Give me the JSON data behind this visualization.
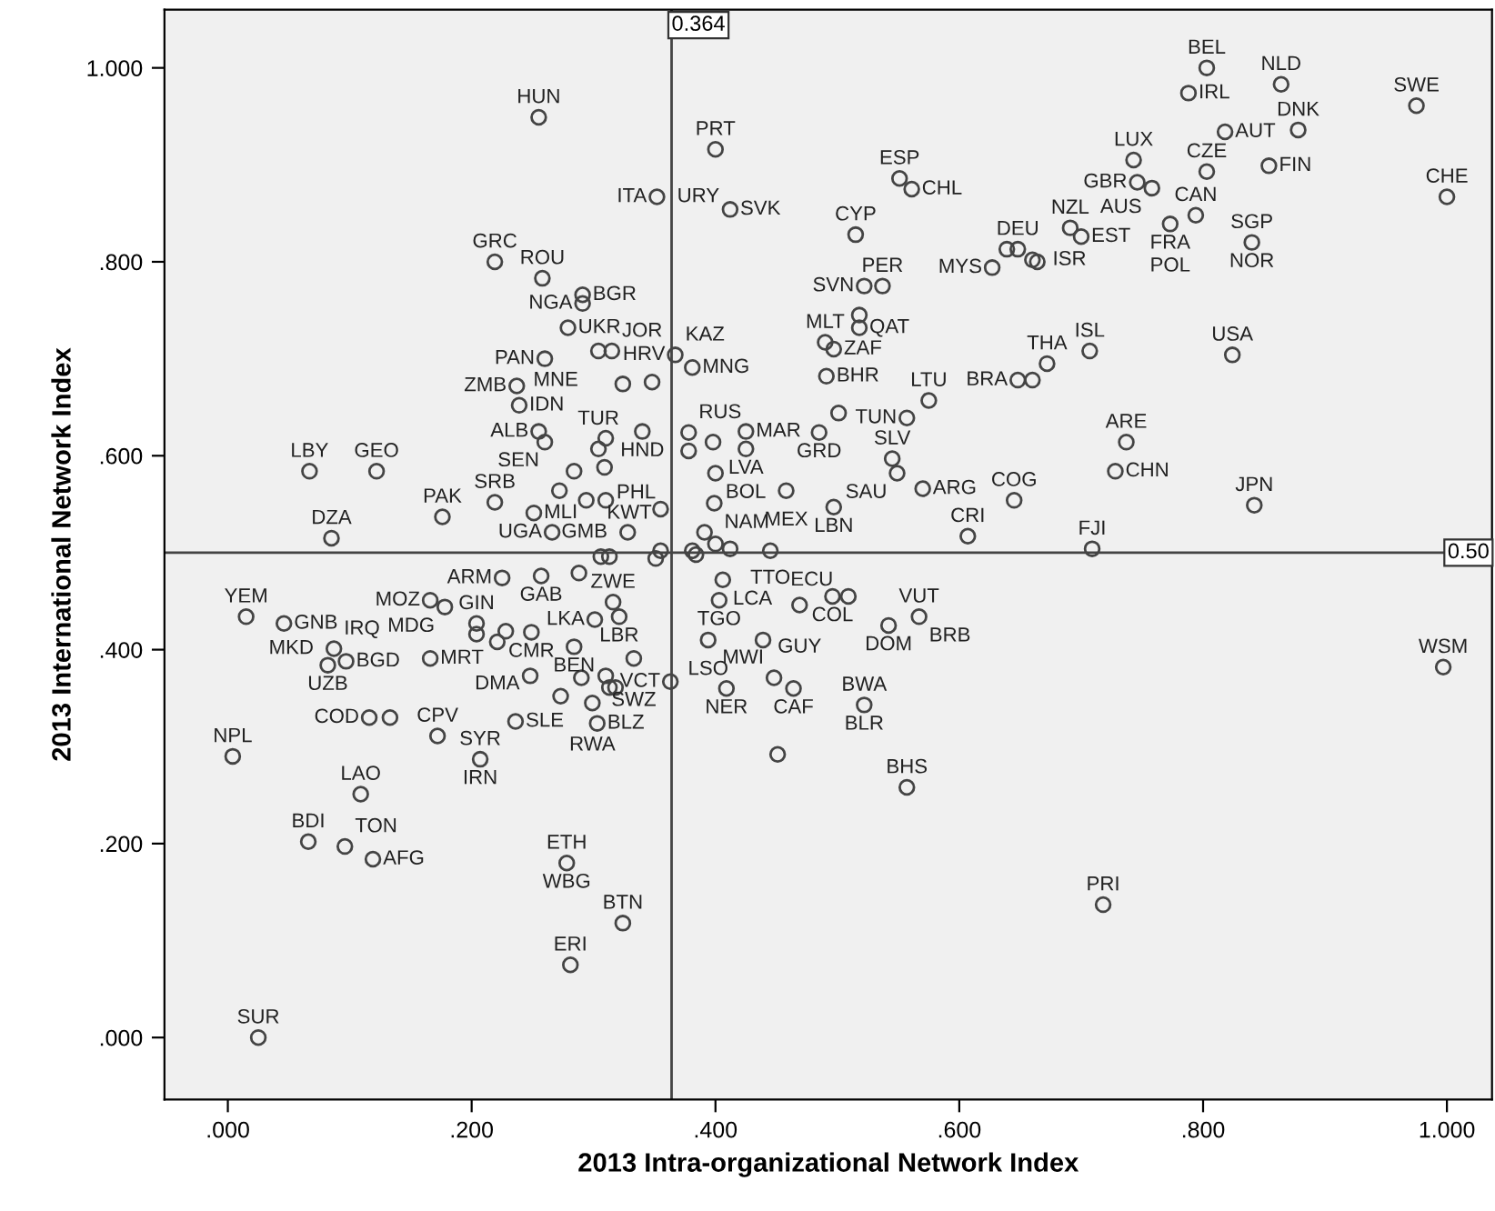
{
  "chart_data": {
    "type": "scatter",
    "xlabel": "2013 Intra-organizational Network Index",
    "ylabel": "2013 International Network Index",
    "xlim": [
      -0.052,
      1.037
    ],
    "ylim": [
      -0.064,
      1.06
    ],
    "xticks": [
      {
        "value": 0,
        "label": ".000"
      },
      {
        "value": 0.2,
        "label": ".200"
      },
      {
        "value": 0.4,
        "label": ".400"
      },
      {
        "value": 0.6,
        "label": ".600"
      },
      {
        "value": 0.8,
        "label": ".800"
      },
      {
        "value": 1.0,
        "label": "1.000"
      }
    ],
    "yticks": [
      {
        "value": 0,
        "label": ".000"
      },
      {
        "value": 0.2,
        "label": ".200"
      },
      {
        "value": 0.4,
        "label": ".400"
      },
      {
        "value": 0.6,
        "label": ".600"
      },
      {
        "value": 0.8,
        "label": ".800"
      },
      {
        "value": 1.0,
        "label": "1.000"
      }
    ],
    "grid": false,
    "marker": "circle",
    "ref_lines": [
      {
        "axis": "x",
        "value": 0.364,
        "label": "0.364",
        "color": "#444444"
      },
      {
        "axis": "y",
        "value": 0.5,
        "label": "0.50",
        "color": "#444444"
      }
    ],
    "series": [
      {
        "color": "#444444",
        "x": [
          0.255,
          0.352,
          0.219,
          0.258,
          0.291,
          0.291,
          0.279,
          0.26,
          0.304,
          0.315,
          0.237,
          0.324,
          0.348,
          0.239,
          0.34,
          0.255,
          0.26,
          0.31,
          0.304,
          0.067,
          0.122,
          0.284,
          0.309,
          0.219,
          0.272,
          0.294,
          0.31,
          0.355,
          0.176,
          0.251,
          0.266,
          0.085,
          0.328,
          0.4,
          0.412,
          0.551,
          0.561,
          0.515,
          0.627,
          0.639,
          0.648,
          0.66,
          0.664,
          0.691,
          0.7,
          0.522,
          0.537,
          0.518,
          0.518,
          0.49,
          0.497,
          0.367,
          0.381,
          0.491,
          0.707,
          0.672,
          0.648,
          0.66,
          0.575,
          0.557,
          0.501,
          0.425,
          0.425,
          0.378,
          0.378,
          0.398,
          0.485,
          0.545,
          0.549,
          0.4,
          0.458,
          0.57,
          0.497,
          0.399,
          0.645,
          0.728,
          0.737,
          0.607,
          0.709,
          0.391,
          0.4,
          0.412,
          0.381,
          0.355,
          0.445,
          0.803,
          0.788,
          0.864,
          0.975,
          0.818,
          0.878,
          0.743,
          0.803,
          0.854,
          1.0,
          0.746,
          0.758,
          0.773,
          0.794,
          0.84,
          0.824,
          0.842,
          0.015,
          0.046,
          0.166,
          0.178,
          0.225,
          0.257,
          0.288,
          0.306,
          0.313,
          0.351,
          0.087,
          0.082,
          0.097,
          0.166,
          0.204,
          0.204,
          0.221,
          0.228,
          0.249,
          0.301,
          0.316,
          0.321,
          0.284,
          0.333,
          0.248,
          0.29,
          0.273,
          0.31,
          0.313,
          0.318,
          0.299,
          0.303,
          0.363,
          0.236,
          0.133,
          0.116,
          0.172,
          0.004,
          0.207,
          0.109,
          0.066,
          0.096,
          0.119,
          0.278,
          0.324,
          0.281,
          0.025,
          0.384,
          0.406,
          0.403,
          0.469,
          0.496,
          0.509,
          0.542,
          0.567,
          0.394,
          0.439,
          0.409,
          0.448,
          0.464,
          0.522,
          0.451,
          0.557,
          0.718,
          0.997
        ],
        "values": [
          0.949,
          0.867,
          0.8,
          0.783,
          0.766,
          0.757,
          0.732,
          0.7,
          0.708,
          0.708,
          0.672,
          0.674,
          0.676,
          0.652,
          0.625,
          0.625,
          0.614,
          0.618,
          0.607,
          0.584,
          0.584,
          0.584,
          0.588,
          0.552,
          0.564,
          0.554,
          0.554,
          0.545,
          0.537,
          0.541,
          0.521,
          0.515,
          0.521,
          0.916,
          0.854,
          0.886,
          0.875,
          0.828,
          0.794,
          0.813,
          0.813,
          0.802,
          0.8,
          0.835,
          0.826,
          0.775,
          0.775,
          0.745,
          0.732,
          0.717,
          0.71,
          0.704,
          0.691,
          0.682,
          0.708,
          0.695,
          0.678,
          0.678,
          0.657,
          0.639,
          0.644,
          0.625,
          0.607,
          0.624,
          0.605,
          0.614,
          0.624,
          0.597,
          0.582,
          0.582,
          0.564,
          0.566,
          0.547,
          0.551,
          0.554,
          0.584,
          0.614,
          0.517,
          0.504,
          0.521,
          0.509,
          0.504,
          0.502,
          0.502,
          0.502,
          1.0,
          0.974,
          0.983,
          0.961,
          0.934,
          0.936,
          0.905,
          0.893,
          0.899,
          0.867,
          0.882,
          0.876,
          0.839,
          0.848,
          0.82,
          0.704,
          0.549,
          0.434,
          0.427,
          0.451,
          0.444,
          0.474,
          0.476,
          0.479,
          0.496,
          0.496,
          0.494,
          0.401,
          0.384,
          0.388,
          0.391,
          0.427,
          0.416,
          0.408,
          0.419,
          0.418,
          0.431,
          0.449,
          0.434,
          0.403,
          0.391,
          0.373,
          0.371,
          0.352,
          0.373,
          0.361,
          0.361,
          0.345,
          0.324,
          0.367,
          0.326,
          0.33,
          0.33,
          0.311,
          0.29,
          0.287,
          0.251,
          0.202,
          0.197,
          0.184,
          0.18,
          0.118,
          0.075,
          0.0,
          0.498,
          0.472,
          0.451,
          0.446,
          0.455,
          0.455,
          0.425,
          0.434,
          0.41,
          0.41,
          0.36,
          0.371,
          0.36,
          0.343,
          0.292,
          0.258,
          0.137,
          0.382
        ]
      }
    ],
    "annotations": [
      {
        "text": "HUN",
        "x": 0.255,
        "y": 0.949
      },
      {
        "text": "ITA",
        "x": 0.352,
        "y": 0.867
      },
      {
        "text": "URY",
        "x": 0.352,
        "y": 0.867
      },
      {
        "text": "PRT",
        "x": 0.4,
        "y": 0.916
      },
      {
        "text": "SVK",
        "x": 0.412,
        "y": 0.854
      },
      {
        "text": "ESP",
        "x": 0.551,
        "y": 0.886
      },
      {
        "text": "CHL",
        "x": 0.561,
        "y": 0.875
      },
      {
        "text": "CYP",
        "x": 0.515,
        "y": 0.828
      },
      {
        "text": "MYS",
        "x": 0.627,
        "y": 0.794
      },
      {
        "text": "NZL",
        "x": 0.691,
        "y": 0.835
      },
      {
        "text": "EST",
        "x": 0.7,
        "y": 0.826
      },
      {
        "text": "GBR",
        "x": 0.746,
        "y": 0.882
      },
      {
        "text": "LUX",
        "x": 0.743,
        "y": 0.905
      },
      {
        "text": "CZE",
        "x": 0.803,
        "y": 0.893
      },
      {
        "text": "BEL",
        "x": 0.803,
        "y": 1.0
      },
      {
        "text": "IRL",
        "x": 0.788,
        "y": 0.974
      },
      {
        "text": "NLD",
        "x": 0.864,
        "y": 0.983
      },
      {
        "text": "DNK",
        "x": 0.878,
        "y": 0.936
      },
      {
        "text": "AUT",
        "x": 0.818,
        "y": 0.934
      },
      {
        "text": "SWE",
        "x": 0.975,
        "y": 0.961
      },
      {
        "text": "FIN",
        "x": 0.854,
        "y": 0.899
      },
      {
        "text": "CHE",
        "x": 1.0,
        "y": 0.867
      },
      {
        "text": "SGP",
        "x": 0.84,
        "y": 0.82
      },
      {
        "text": "NOR",
        "x": 0.84,
        "y": 0.82
      },
      {
        "text": "CAN",
        "x": 0.794,
        "y": 0.848
      },
      {
        "text": "FRA",
        "x": 0.773,
        "y": 0.839
      },
      {
        "text": "POL",
        "x": 0.773,
        "y": 0.839
      },
      {
        "text": "AUS",
        "x": 0.758,
        "y": 0.876
      },
      {
        "text": "USA",
        "x": 0.824,
        "y": 0.704
      },
      {
        "text": "ISL",
        "x": 0.707,
        "y": 0.708
      },
      {
        "text": "THA",
        "x": 0.672,
        "y": 0.695
      },
      {
        "text": "DEU",
        "x": 0.648,
        "y": 0.813
      },
      {
        "text": "ISR",
        "x": 0.66,
        "y": 0.802
      },
      {
        "text": "PER",
        "x": 0.537,
        "y": 0.775
      },
      {
        "text": "SVN",
        "x": 0.522,
        "y": 0.775
      },
      {
        "text": "GRC",
        "x": 0.219,
        "y": 0.8
      },
      {
        "text": "ROU",
        "x": 0.258,
        "y": 0.783
      },
      {
        "text": "BGR",
        "x": 0.291,
        "y": 0.766
      },
      {
        "text": "NGA",
        "x": 0.291,
        "y": 0.757
      },
      {
        "text": "HRV",
        "x": 0.367,
        "y": 0.704
      },
      {
        "text": "KAZ",
        "x": 0.367,
        "y": 0.704
      },
      {
        "text": "MNG",
        "x": 0.381,
        "y": 0.691
      },
      {
        "text": "MLT",
        "x": 0.49,
        "y": 0.717
      },
      {
        "text": "QAT",
        "x": 0.518,
        "y": 0.732
      },
      {
        "text": "ZAF",
        "x": 0.497,
        "y": 0.71
      },
      {
        "text": "UKR",
        "x": 0.279,
        "y": 0.732
      },
      {
        "text": "MNE",
        "x": 0.304,
        "y": 0.708
      },
      {
        "text": "JOR",
        "x": 0.315,
        "y": 0.708
      },
      {
        "text": "BHR",
        "x": 0.491,
        "y": 0.682
      },
      {
        "text": "LTU",
        "x": 0.575,
        "y": 0.657
      },
      {
        "text": "BRA",
        "x": 0.648,
        "y": 0.678
      },
      {
        "text": "TUN",
        "x": 0.557,
        "y": 0.639
      },
      {
        "text": "ARE",
        "x": 0.737,
        "y": 0.614
      },
      {
        "text": "PAN",
        "x": 0.26,
        "y": 0.7
      },
      {
        "text": "ZMB",
        "x": 0.237,
        "y": 0.672
      },
      {
        "text": "IDN",
        "x": 0.239,
        "y": 0.652
      },
      {
        "text": "ALB",
        "x": 0.255,
        "y": 0.625
      },
      {
        "text": "TUR",
        "x": 0.304,
        "y": 0.607
      },
      {
        "text": "HND",
        "x": 0.34,
        "y": 0.625
      },
      {
        "text": "RUS",
        "x": 0.378,
        "y": 0.624
      },
      {
        "text": "MAR",
        "x": 0.425,
        "y": 0.625
      },
      {
        "text": "GRD",
        "x": 0.485,
        "y": 0.624
      },
      {
        "text": "LVA",
        "x": 0.425,
        "y": 0.607
      },
      {
        "text": "SLV",
        "x": 0.545,
        "y": 0.597
      },
      {
        "text": "LBY",
        "x": 0.067,
        "y": 0.584
      },
      {
        "text": "GEO",
        "x": 0.122,
        "y": 0.584
      },
      {
        "text": "SRB",
        "x": 0.219,
        "y": 0.552
      },
      {
        "text": "SEN",
        "x": 0.272,
        "y": 0.564
      },
      {
        "text": "CHN",
        "x": 0.728,
        "y": 0.584
      },
      {
        "text": "COG",
        "x": 0.645,
        "y": 0.554
      },
      {
        "text": "KWT",
        "x": 0.284,
        "y": 0.584
      },
      {
        "text": "PHL",
        "x": 0.378,
        "y": 0.605
      },
      {
        "text": "BOL",
        "x": 0.4,
        "y": 0.582
      },
      {
        "text": "MEX",
        "x": 0.458,
        "y": 0.564
      },
      {
        "text": "ARG",
        "x": 0.57,
        "y": 0.566
      },
      {
        "text": "SAU",
        "x": 0.549,
        "y": 0.582
      },
      {
        "text": "NAM",
        "x": 0.399,
        "y": 0.551
      },
      {
        "text": "JPN",
        "x": 0.842,
        "y": 0.549
      },
      {
        "text": "PAK",
        "x": 0.176,
        "y": 0.537
      },
      {
        "text": "MLI",
        "x": 0.251,
        "y": 0.541
      },
      {
        "text": "UGA",
        "x": 0.266,
        "y": 0.521
      },
      {
        "text": "GMB",
        "x": 0.328,
        "y": 0.521
      },
      {
        "text": "TTO",
        "x": 0.412,
        "y": 0.504
      },
      {
        "text": "LBN",
        "x": 0.497,
        "y": 0.547
      },
      {
        "text": "CRI",
        "x": 0.607,
        "y": 0.517
      },
      {
        "text": "FJI",
        "x": 0.709,
        "y": 0.504
      },
      {
        "text": "DZA",
        "x": 0.085,
        "y": 0.515
      },
      {
        "text": "ARM",
        "x": 0.225,
        "y": 0.474
      },
      {
        "text": "GAB",
        "x": 0.257,
        "y": 0.476
      },
      {
        "text": "ECU",
        "x": 0.445,
        "y": 0.502
      },
      {
        "text": "COL",
        "x": 0.496,
        "y": 0.455
      },
      {
        "text": "DOM",
        "x": 0.542,
        "y": 0.425
      },
      {
        "text": "VUT",
        "x": 0.567,
        "y": 0.434
      },
      {
        "text": "BRB",
        "x": 0.567,
        "y": 0.434
      },
      {
        "text": "MOZ",
        "x": 0.166,
        "y": 0.451
      },
      {
        "text": "ZWE",
        "x": 0.316,
        "y": 0.449
      },
      {
        "text": "LCA",
        "x": 0.406,
        "y": 0.472
      },
      {
        "text": "YEM",
        "x": 0.015,
        "y": 0.434
      },
      {
        "text": "TGO",
        "x": 0.403,
        "y": 0.451
      },
      {
        "text": "GUY",
        "x": 0.469,
        "y": 0.446
      },
      {
        "text": "MDG",
        "x": 0.178,
        "y": 0.444
      },
      {
        "text": "GNB",
        "x": 0.046,
        "y": 0.427
      },
      {
        "text": "IRQ",
        "x": 0.087,
        "y": 0.401
      },
      {
        "text": "MKD",
        "x": 0.087,
        "y": 0.401
      },
      {
        "text": "GIN",
        "x": 0.204,
        "y": 0.427
      },
      {
        "text": "LKA",
        "x": 0.301,
        "y": 0.431
      },
      {
        "text": "LBR",
        "x": 0.321,
        "y": 0.434
      },
      {
        "text": "UZB",
        "x": 0.082,
        "y": 0.384
      },
      {
        "text": "BGD",
        "x": 0.097,
        "y": 0.388
      },
      {
        "text": "MRT",
        "x": 0.166,
        "y": 0.391
      },
      {
        "text": "DMA",
        "x": 0.221,
        "y": 0.408
      },
      {
        "text": "CMR",
        "x": 0.249,
        "y": 0.418
      },
      {
        "text": "BEN",
        "x": 0.284,
        "y": 0.403
      },
      {
        "text": "SWZ",
        "x": 0.333,
        "y": 0.391
      },
      {
        "text": "MWI",
        "x": 0.448,
        "y": 0.371
      },
      {
        "text": "LSO",
        "x": 0.394,
        "y": 0.41
      },
      {
        "text": "WSM",
        "x": 0.997,
        "y": 0.382
      },
      {
        "text": "BWA",
        "x": 0.522,
        "y": 0.343
      },
      {
        "text": "BLR",
        "x": 0.522,
        "y": 0.343
      },
      {
        "text": "NER",
        "x": 0.409,
        "y": 0.36
      },
      {
        "text": "CAF",
        "x": 0.464,
        "y": 0.36
      },
      {
        "text": "VCT",
        "x": 0.363,
        "y": 0.367
      },
      {
        "text": "NPL",
        "x": 0.004,
        "y": 0.29
      },
      {
        "text": "COD",
        "x": 0.116,
        "y": 0.33
      },
      {
        "text": "CPV",
        "x": 0.172,
        "y": 0.311
      },
      {
        "text": "SLE",
        "x": 0.236,
        "y": 0.326
      },
      {
        "text": "BLZ",
        "x": 0.303,
        "y": 0.324
      },
      {
        "text": "SYR",
        "x": 0.207,
        "y": 0.287
      },
      {
        "text": "IRN",
        "x": 0.207,
        "y": 0.287
      },
      {
        "text": "RWA",
        "x": 0.299,
        "y": 0.345
      },
      {
        "text": "LAO",
        "x": 0.109,
        "y": 0.251
      },
      {
        "text": "BHS",
        "x": 0.557,
        "y": 0.258
      },
      {
        "text": "ETH",
        "x": 0.278,
        "y": 0.18
      },
      {
        "text": "WBG",
        "x": 0.278,
        "y": 0.18
      },
      {
        "text": "BDI",
        "x": 0.066,
        "y": 0.202
      },
      {
        "text": "AFG",
        "x": 0.119,
        "y": 0.184
      },
      {
        "text": "TON",
        "x": 0.096,
        "y": 0.197
      },
      {
        "text": "BTN",
        "x": 0.324,
        "y": 0.118
      },
      {
        "text": "PRI",
        "x": 0.718,
        "y": 0.137
      },
      {
        "text": "ERI",
        "x": 0.281,
        "y": 0.075
      },
      {
        "text": "SUR",
        "x": 0.025,
        "y": 0.0
      }
    ]
  }
}
